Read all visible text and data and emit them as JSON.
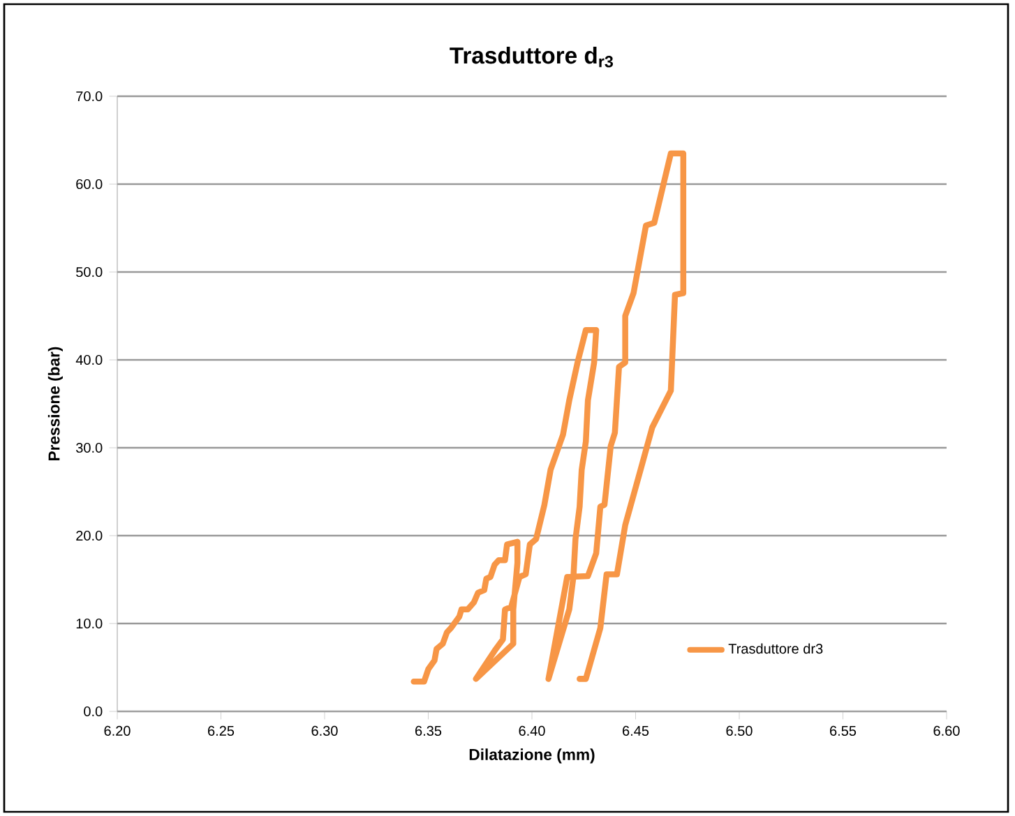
{
  "chart_data": {
    "type": "line",
    "title": "Trasduttore d$_{r3}$",
    "xlabel": "Dilatazione  (mm)",
    "ylabel": "Pressione (bar)",
    "xlim": [
      6.2,
      6.6
    ],
    "ylim": [
      0,
      70
    ],
    "xticks": [
      {
        "value": 6.2,
        "label": "6.20"
      },
      {
        "value": 6.25,
        "label": "6.25"
      },
      {
        "value": 6.3,
        "label": "6.30"
      },
      {
        "value": 6.35,
        "label": "6.35"
      },
      {
        "value": 6.4,
        "label": "6.40"
      },
      {
        "value": 6.45,
        "label": "6.45"
      },
      {
        "value": 6.5,
        "label": "6.50"
      },
      {
        "value": 6.55,
        "label": "6.55"
      },
      {
        "value": 6.6,
        "label": "6.60"
      }
    ],
    "yticks": [
      {
        "value": 0,
        "label": "0.0"
      },
      {
        "value": 10,
        "label": "10.0"
      },
      {
        "value": 20,
        "label": "20.0"
      },
      {
        "value": 30,
        "label": "30.0"
      },
      {
        "value": 40,
        "label": "40.0"
      },
      {
        "value": 50,
        "label": "50.0"
      },
      {
        "value": 60,
        "label": "60.0"
      },
      {
        "value": 70,
        "label": "70.0"
      }
    ],
    "grid": "y",
    "legend": "bottom right",
    "marker": "none",
    "line_style": "solid",
    "series": [
      {
        "name": "Trasduttore dr3",
        "color": "#f79646",
        "x": [
          6.343,
          6.348,
          6.35,
          6.353,
          6.354,
          6.357,
          6.359,
          6.361,
          6.365,
          6.366,
          6.369,
          6.372,
          6.374,
          6.377,
          6.378,
          6.38,
          6.382,
          6.384,
          6.387,
          6.388,
          6.393,
          6.393,
          6.391,
          6.391,
          6.373,
          6.382,
          6.386,
          6.387,
          6.39,
          6.394,
          6.397,
          6.399,
          6.402,
          6.406,
          6.409,
          6.415,
          6.418,
          6.422,
          6.426,
          6.431,
          6.43,
          6.427,
          6.426,
          6.424,
          6.423,
          6.421,
          6.42,
          6.418,
          6.408,
          6.417,
          6.427,
          6.431,
          6.433,
          6.435,
          6.438,
          6.44,
          6.442,
          6.445,
          6.445,
          6.449,
          6.455,
          6.459,
          6.467,
          6.473,
          6.473,
          6.469,
          6.467,
          6.458,
          6.453,
          6.445,
          6.441,
          6.436,
          6.433,
          6.426,
          6.423
        ],
        "values": [
          3.4,
          3.4,
          4.8,
          5.8,
          7.1,
          7.7,
          9.0,
          9.5,
          10.8,
          11.6,
          11.6,
          12.4,
          13.5,
          13.8,
          15.1,
          15.3,
          16.7,
          17.2,
          17.2,
          19.0,
          19.3,
          16.9,
          11.6,
          7.7,
          3.7,
          6.9,
          8.2,
          11.6,
          11.9,
          15.3,
          15.6,
          19.0,
          19.6,
          23.5,
          27.5,
          31.5,
          35.4,
          39.7,
          43.4,
          43.4,
          39.7,
          35.4,
          30.7,
          27.5,
          23.3,
          19.6,
          15.3,
          11.6,
          3.7,
          15.3,
          15.4,
          18.0,
          23.3,
          23.5,
          30.2,
          31.7,
          39.2,
          39.7,
          45.0,
          47.6,
          55.3,
          55.6,
          63.5,
          63.5,
          47.6,
          47.4,
          36.5,
          32.3,
          28.0,
          21.2,
          15.6,
          15.6,
          9.5,
          3.7,
          3.7
        ]
      }
    ]
  }
}
